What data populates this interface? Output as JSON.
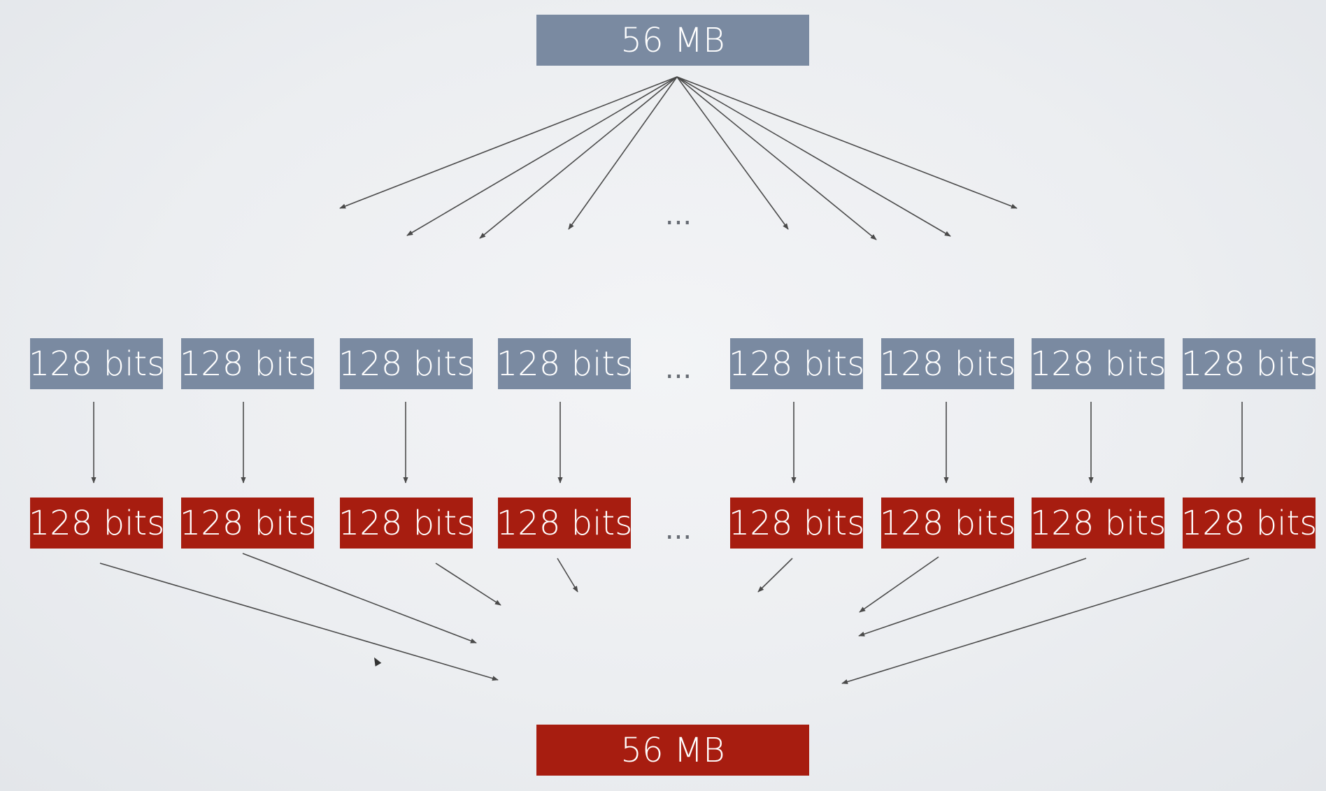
{
  "source_block": {
    "label": "56 MB"
  },
  "output_block": {
    "label": "56 MB"
  },
  "input_blocks": [
    {
      "label": "128 bits"
    },
    {
      "label": "128 bits"
    },
    {
      "label": "128 bits"
    },
    {
      "label": "128 bits"
    },
    {
      "label": "128 bits"
    },
    {
      "label": "128 bits"
    },
    {
      "label": "128 bits"
    },
    {
      "label": "128 bits"
    }
  ],
  "encrypted_blocks": [
    {
      "label": "128 bits"
    },
    {
      "label": "128 bits"
    },
    {
      "label": "128 bits"
    },
    {
      "label": "128 bits"
    },
    {
      "label": "128 bits"
    },
    {
      "label": "128 bits"
    },
    {
      "label": "128 bits"
    },
    {
      "label": "128 bits"
    }
  ],
  "ellipsis": "...",
  "colors": {
    "blue_block": "#7a8aa1",
    "red_block": "#a71d10",
    "arrow": "#4a4a4a",
    "background": "#eceef1"
  }
}
